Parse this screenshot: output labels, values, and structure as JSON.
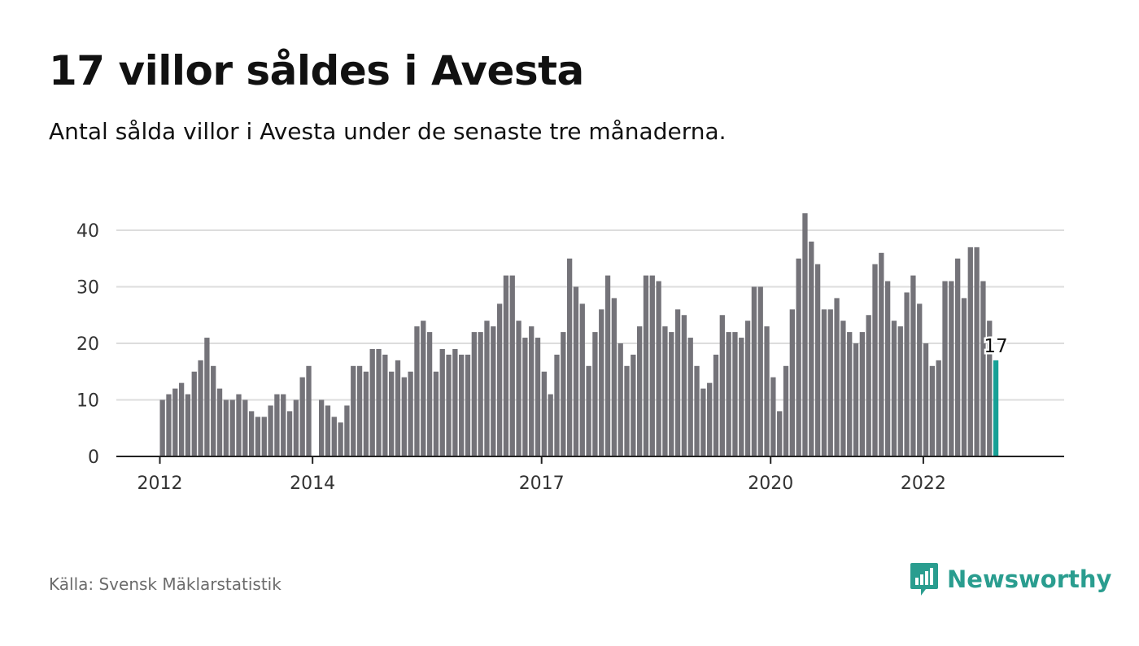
{
  "title": "17 villor såldes i Avesta",
  "subtitle": "Antal sålda villor i Avesta under de senaste tre månaderna.",
  "source": "Källa: Svensk Mäklarstatistik",
  "brand": {
    "name": "Newsworthy",
    "color": "#2a9d8f",
    "icon": "bar-chart-speech-bubble-icon"
  },
  "colors": {
    "bar": "#747379",
    "highlight": "#17a096",
    "grid": "#dddddd",
    "axis": "#222222"
  },
  "chart_data": {
    "type": "bar",
    "title": "17 villor såldes i Avesta",
    "xlabel": "",
    "ylabel": "",
    "ylim": [
      0,
      45
    ],
    "yticks": [
      0,
      10,
      20,
      30,
      40
    ],
    "grid": true,
    "x_tick_labels": [
      {
        "label": "2012",
        "index": 0
      },
      {
        "label": "2014",
        "index": 24
      },
      {
        "label": "2017",
        "index": 60
      },
      {
        "label": "2020",
        "index": 96
      },
      {
        "label": "2022",
        "index": 120
      }
    ],
    "highlight_label": "17",
    "values": [
      10,
      11,
      12,
      13,
      11,
      15,
      17,
      21,
      16,
      12,
      10,
      10,
      11,
      10,
      8,
      7,
      7,
      9,
      11,
      11,
      8,
      10,
      14,
      16,
      null,
      10,
      9,
      7,
      6,
      9,
      16,
      16,
      15,
      19,
      19,
      18,
      15,
      17,
      14,
      15,
      23,
      24,
      22,
      15,
      19,
      18,
      19,
      18,
      18,
      22,
      22,
      24,
      23,
      27,
      32,
      32,
      24,
      21,
      23,
      21,
      15,
      11,
      18,
      22,
      35,
      30,
      27,
      16,
      22,
      26,
      32,
      28,
      20,
      16,
      18,
      23,
      32,
      32,
      31,
      23,
      22,
      26,
      25,
      21,
      16,
      12,
      13,
      18,
      25,
      22,
      22,
      21,
      24,
      30,
      30,
      23,
      14,
      8,
      16,
      26,
      35,
      43,
      38,
      34,
      26,
      26,
      28,
      24,
      22,
      20,
      22,
      25,
      34,
      36,
      31,
      24,
      23,
      29,
      32,
      27,
      20,
      16,
      17,
      31,
      31,
      35,
      28,
      37,
      37,
      31,
      24,
      17
    ]
  }
}
